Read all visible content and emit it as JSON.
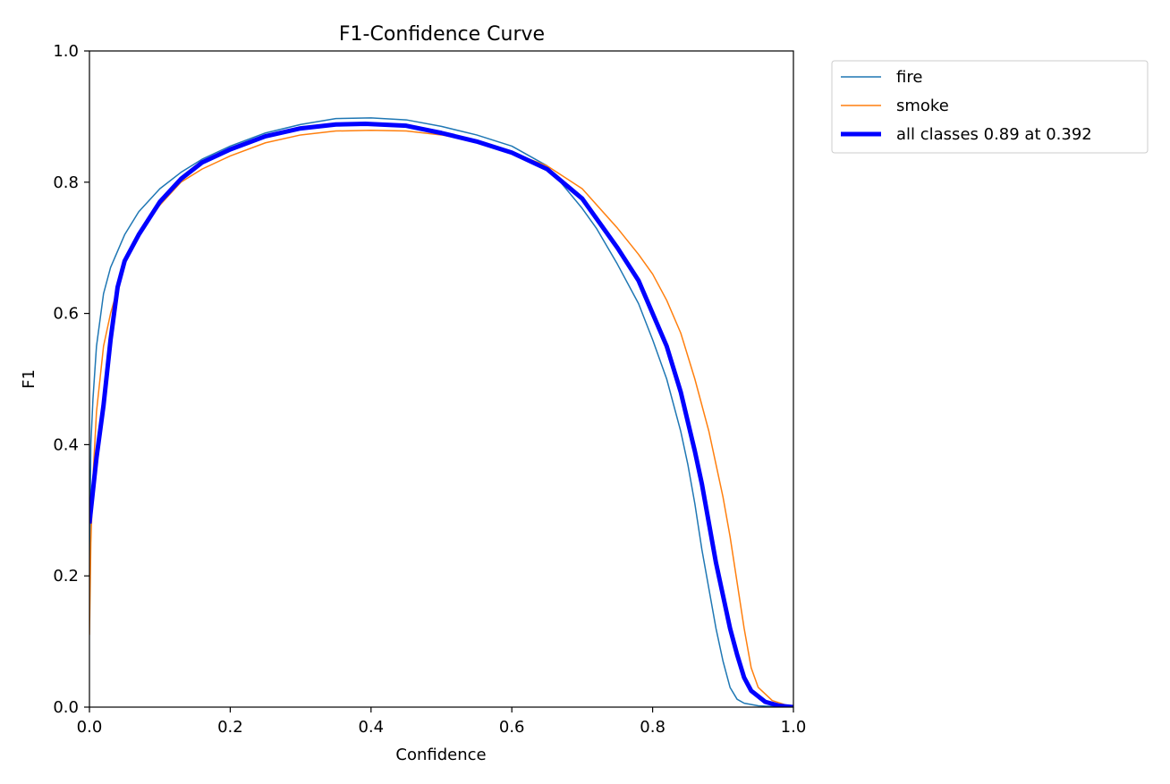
{
  "chart_data": {
    "type": "line",
    "title": "F1-Confidence Curve",
    "xlabel": "Confidence",
    "ylabel": "F1",
    "xlim": [
      0.0,
      1.0
    ],
    "ylim": [
      0.0,
      1.0
    ],
    "xticks": [
      "0.0",
      "0.2",
      "0.4",
      "0.6",
      "0.8",
      "1.0"
    ],
    "yticks": [
      "0.0",
      "0.2",
      "0.4",
      "0.6",
      "0.8",
      "1.0"
    ],
    "grid": false,
    "legend_position": "outside-top-right",
    "series": [
      {
        "name": "fire",
        "color": "#1f77b4",
        "x": [
          0.0,
          0.002,
          0.005,
          0.01,
          0.02,
          0.03,
          0.05,
          0.07,
          0.1,
          0.13,
          0.16,
          0.2,
          0.25,
          0.3,
          0.35,
          0.4,
          0.45,
          0.5,
          0.55,
          0.6,
          0.65,
          0.7,
          0.72,
          0.75,
          0.78,
          0.8,
          0.82,
          0.84,
          0.85,
          0.86,
          0.87,
          0.88,
          0.89,
          0.9,
          0.91,
          0.92,
          0.93,
          0.95,
          0.97,
          1.0
        ],
        "y": [
          0.2,
          0.4,
          0.47,
          0.55,
          0.63,
          0.67,
          0.72,
          0.755,
          0.79,
          0.815,
          0.835,
          0.855,
          0.875,
          0.888,
          0.897,
          0.898,
          0.895,
          0.885,
          0.872,
          0.855,
          0.825,
          0.76,
          0.73,
          0.675,
          0.615,
          0.56,
          0.5,
          0.42,
          0.37,
          0.31,
          0.24,
          0.18,
          0.12,
          0.07,
          0.03,
          0.012,
          0.006,
          0.002,
          0.001,
          0.0
        ]
      },
      {
        "name": "smoke",
        "color": "#ff7f0e",
        "x": [
          0.0,
          0.002,
          0.005,
          0.01,
          0.02,
          0.03,
          0.05,
          0.07,
          0.1,
          0.13,
          0.16,
          0.2,
          0.25,
          0.3,
          0.35,
          0.4,
          0.45,
          0.5,
          0.55,
          0.6,
          0.65,
          0.7,
          0.75,
          0.78,
          0.8,
          0.82,
          0.84,
          0.86,
          0.88,
          0.9,
          0.91,
          0.92,
          0.93,
          0.94,
          0.95,
          0.97,
          0.99,
          1.0
        ],
        "y": [
          0.11,
          0.25,
          0.35,
          0.45,
          0.55,
          0.6,
          0.675,
          0.72,
          0.765,
          0.8,
          0.82,
          0.84,
          0.86,
          0.872,
          0.878,
          0.879,
          0.878,
          0.872,
          0.862,
          0.845,
          0.825,
          0.79,
          0.73,
          0.69,
          0.66,
          0.62,
          0.57,
          0.5,
          0.42,
          0.32,
          0.26,
          0.19,
          0.12,
          0.06,
          0.03,
          0.01,
          0.003,
          0.0
        ]
      },
      {
        "name": "all classes 0.89 at 0.392",
        "color": "#0000ff",
        "x": [
          0.0,
          0.005,
          0.01,
          0.02,
          0.03,
          0.04,
          0.05,
          0.07,
          0.1,
          0.13,
          0.16,
          0.2,
          0.25,
          0.3,
          0.35,
          0.392,
          0.45,
          0.5,
          0.55,
          0.6,
          0.65,
          0.7,
          0.75,
          0.78,
          0.8,
          0.82,
          0.84,
          0.86,
          0.87,
          0.88,
          0.89,
          0.9,
          0.91,
          0.92,
          0.93,
          0.94,
          0.96,
          0.98,
          1.0
        ],
        "y": [
          0.28,
          0.33,
          0.38,
          0.46,
          0.56,
          0.64,
          0.68,
          0.72,
          0.77,
          0.805,
          0.83,
          0.85,
          0.87,
          0.882,
          0.888,
          0.889,
          0.886,
          0.875,
          0.862,
          0.845,
          0.82,
          0.775,
          0.7,
          0.65,
          0.6,
          0.55,
          0.48,
          0.39,
          0.34,
          0.28,
          0.22,
          0.17,
          0.12,
          0.08,
          0.045,
          0.025,
          0.008,
          0.002,
          0.0
        ]
      }
    ]
  }
}
